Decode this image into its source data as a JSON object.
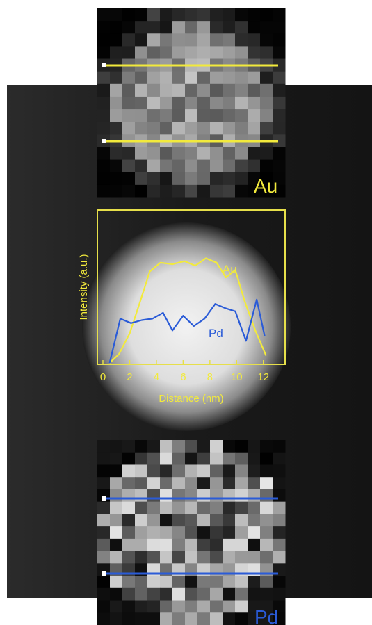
{
  "colors": {
    "au": "#f2ea3c",
    "pd": "#2a5bd7",
    "frame": "#e6df4a"
  },
  "maps": {
    "au": {
      "label": "Au"
    },
    "pd": {
      "label": "Pd"
    }
  },
  "chart_data": {
    "type": "line",
    "title": "",
    "xlabel": "Distance (nm)",
    "ylabel": "Intensity (a.u.)",
    "xlim": [
      0,
      13
    ],
    "ylim": [
      0,
      1
    ],
    "xticks": [
      0,
      2,
      4,
      6,
      8,
      10,
      12
    ],
    "grid": false,
    "series": [
      {
        "name": "Au",
        "x": [
          0.5,
          1.2,
          2.0,
          2.8,
          3.5,
          4.3,
          5.2,
          6.1,
          6.9,
          7.7,
          8.5,
          9.2,
          9.9,
          10.6,
          11.4,
          12.2
        ],
        "y": [
          0.0,
          0.06,
          0.2,
          0.42,
          0.62,
          0.68,
          0.67,
          0.69,
          0.66,
          0.71,
          0.68,
          0.58,
          0.63,
          0.42,
          0.22,
          0.05
        ]
      },
      {
        "name": "Pd",
        "x": [
          0.5,
          1.3,
          2.1,
          2.9,
          3.7,
          4.5,
          5.2,
          6.0,
          6.8,
          7.6,
          8.4,
          9.2,
          9.9,
          10.7,
          11.5,
          12.1
        ],
        "y": [
          0.0,
          0.3,
          0.27,
          0.29,
          0.3,
          0.34,
          0.22,
          0.32,
          0.25,
          0.3,
          0.4,
          0.37,
          0.35,
          0.15,
          0.43,
          0.18
        ]
      }
    ]
  }
}
